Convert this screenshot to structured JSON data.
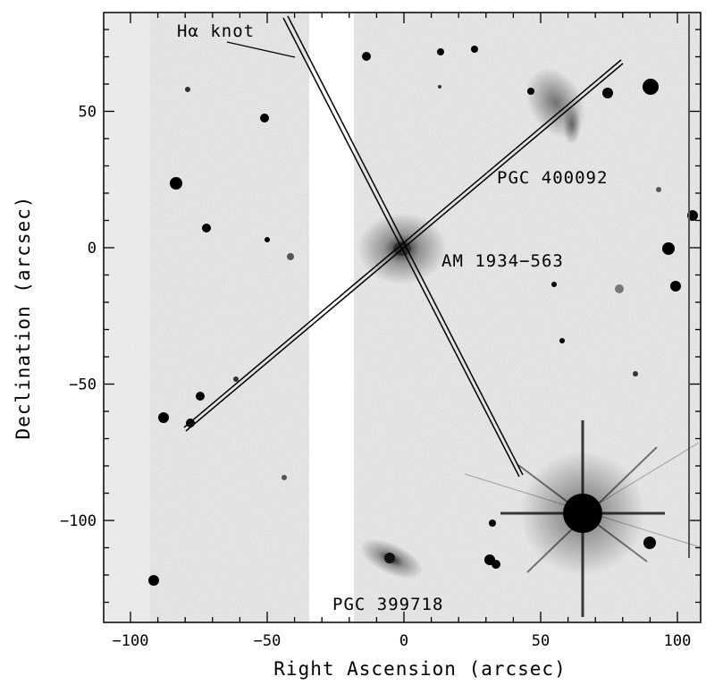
{
  "figure": {
    "xlabel": "Right Ascension (arcsec)",
    "ylabel": "Declination (arcsec)",
    "x_ticks": [
      -100,
      -50,
      0,
      50,
      100
    ],
    "y_ticks": [
      50,
      0,
      -50,
      -100
    ],
    "x_tick_labels": [
      "−100",
      "−50",
      "0",
      "50",
      "100"
    ],
    "y_tick_labels": [
      "50",
      "0",
      "−50",
      "−100"
    ],
    "xlim": [
      -110,
      110
    ],
    "ylim": [
      -137,
      85
    ]
  },
  "annotations": {
    "halpha_knot": "Hα knot",
    "pgc_400092": "PGC 400092",
    "am_1934": "AM 1934−563",
    "pgc_399718": "PGC 399718"
  },
  "colors": {
    "background": "#ffffff",
    "sky": "#e6e6e6",
    "ink": "#000000"
  }
}
